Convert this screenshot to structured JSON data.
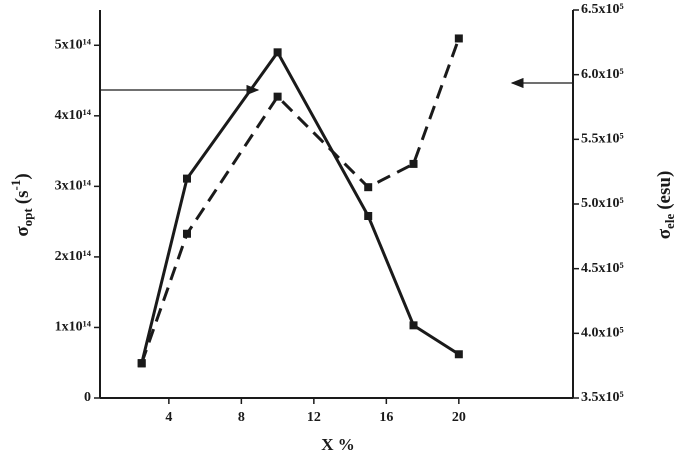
{
  "chart_data": {
    "type": "line",
    "xlabel": "X %",
    "ylabel": {
      "symbol": "σ",
      "sub": "opt",
      "unit": "(s",
      "unit_sup": "-1",
      "close": ")"
    },
    "y2label": {
      "symbol": "σ",
      "sub": "ele",
      "unit": "(esu)"
    },
    "x": [
      2.5,
      5,
      10,
      15,
      17.5,
      20
    ],
    "xlim": [
      0.2,
      26.3
    ],
    "xticks": [
      4,
      8,
      12,
      16,
      20
    ],
    "ylim": [
      0,
      550000000000000.0
    ],
    "yticks": [
      {
        "value": 0,
        "label": "0"
      },
      {
        "value": 100000000000000.0,
        "label": "1x10¹⁴"
      },
      {
        "value": 200000000000000.0,
        "label": "2x10¹⁴"
      },
      {
        "value": 300000000000000.0,
        "label": "3x10¹⁴"
      },
      {
        "value": 400000000000000.0,
        "label": "4x10¹⁴"
      },
      {
        "value": 500000000000000.0,
        "label": "5x10¹⁴"
      }
    ],
    "y2lim": [
      350000,
      650000
    ],
    "y2ticks": [
      {
        "value": 350000,
        "label": "3.5x10⁵"
      },
      {
        "value": 400000,
        "label": "4.0x10⁵"
      },
      {
        "value": 450000,
        "label": "4.5x10⁵"
      },
      {
        "value": 500000,
        "label": "5.0x10⁵"
      },
      {
        "value": 550000,
        "label": "5.5x10⁵"
      },
      {
        "value": 600000,
        "label": "6.0x10⁵"
      },
      {
        "value": 650000,
        "label": "6.5x10⁵"
      }
    ],
    "series": [
      {
        "color": "#1a1a1a",
        "dash": "solid",
        "axis": "y",
        "values": [
          49000000000000.0,
          311000000000000.0,
          490000000000000.0,
          258000000000000.0,
          103000000000000.0,
          62000000000000.0
        ]
      },
      {
        "color": "#1a1a1a",
        "dash": "dashed",
        "axis": "y2",
        "values": [
          377000,
          477000,
          583000,
          513000,
          531000,
          628000
        ]
      }
    ]
  }
}
